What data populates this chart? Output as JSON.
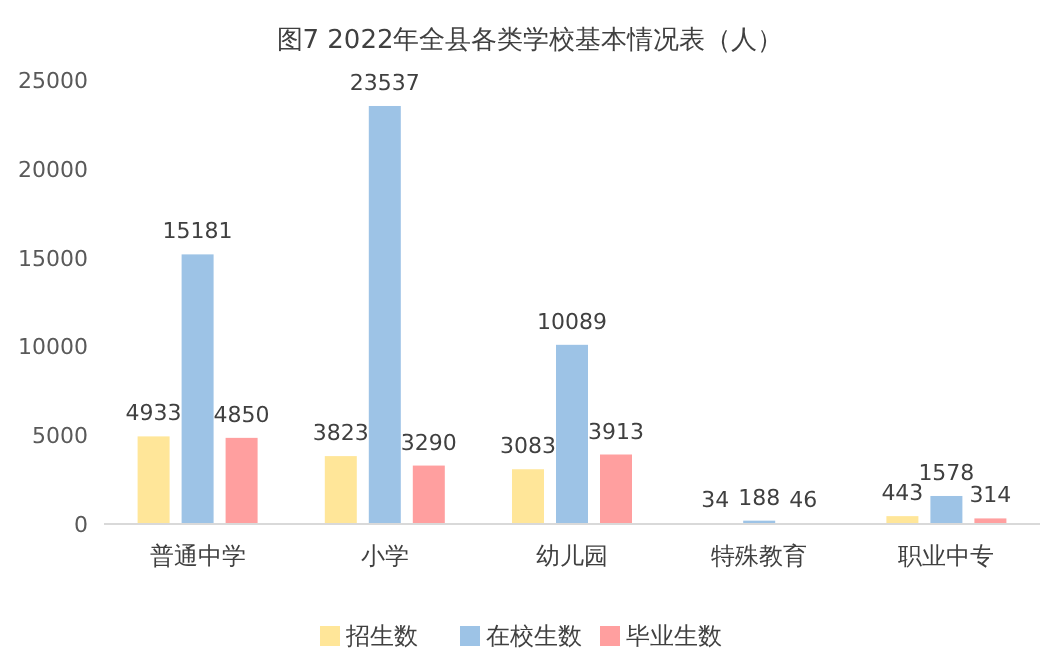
{
  "chart_data": {
    "type": "bar",
    "title": "图7 2022年全县各类学校基本情况表（人）",
    "categories": [
      "普通中学",
      "小学",
      "幼儿园",
      "特殊教育",
      "职业中专"
    ],
    "series": [
      {
        "name": "招生数",
        "color": "#ffe699",
        "values": [
          4933,
          3823,
          3083,
          34,
          443
        ]
      },
      {
        "name": "在校生数",
        "color": "#9dc3e6",
        "values": [
          15181,
          23537,
          10089,
          188,
          1578
        ]
      },
      {
        "name": "毕业生数",
        "color": "#ff9f9f",
        "values": [
          4850,
          3290,
          3913,
          46,
          314
        ]
      }
    ],
    "ylim": [
      0,
      25000
    ],
    "yticks": [
      0,
      5000,
      10000,
      15000,
      20000,
      25000
    ],
    "data_labels": true,
    "legend": "bottom"
  }
}
